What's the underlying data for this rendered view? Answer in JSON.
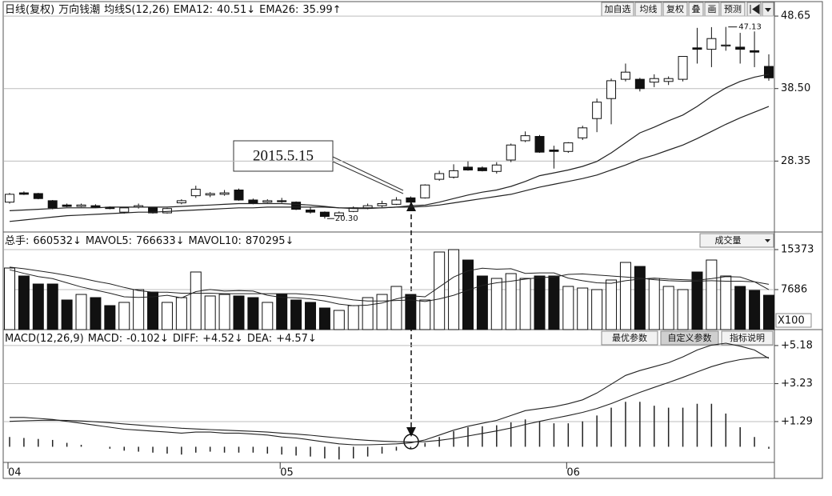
{
  "toolbar": {
    "buttons": [
      "加自选",
      "均线",
      "复权",
      "叠",
      "画",
      "预测"
    ]
  },
  "chart_data": [
    {
      "type": "candlestick",
      "title": "日线(复权)",
      "subtitle": "万向钱潮",
      "indicator": "均线S(12,26)",
      "open": [
        22.6,
        23.9,
        23.8,
        22.8,
        22.2,
        22.0,
        22.1,
        21.9,
        21.2,
        21.9,
        21.8,
        21.1,
        22.5,
        23.5,
        23.6,
        23.7,
        24.3,
        22.9,
        22.6,
        22.8,
        22.6,
        21.5,
        21.2,
        20.7,
        21.3,
        21.8,
        22.1,
        22.3,
        23.2,
        23.2,
        25.8,
        26.1,
        27.5,
        27.4,
        26.9,
        28.5,
        31.2,
        31.8,
        29.9,
        29.7,
        31.6,
        34.3,
        37.1,
        39.8,
        39.8,
        39.4,
        39.5,
        39.8,
        44.2,
        44.0,
        44.5,
        44.3,
        43.8,
        41.6
      ],
      "high": [
        23.9,
        24.1,
        23.9,
        22.9,
        22.4,
        22.4,
        22.3,
        22.0,
        21.9,
        22.4,
        21.9,
        21.8,
        23.0,
        24.9,
        24.0,
        24.3,
        24.5,
        23.1,
        23.0,
        23.2,
        22.7,
        21.9,
        21.3,
        21.3,
        22.0,
        22.4,
        22.8,
        23.3,
        23.4,
        25.1,
        27.0,
        27.9,
        28.3,
        27.6,
        28.2,
        30.8,
        32.5,
        32.0,
        30.5,
        31.0,
        33.3,
        37.1,
        39.9,
        42.0,
        40.0,
        40.5,
        40.2,
        43.0,
        47.0,
        47.1,
        47.13,
        46.3,
        46.5,
        43.3
      ],
      "low": [
        22.4,
        23.6,
        23.0,
        21.6,
        21.9,
        21.9,
        21.8,
        21.6,
        21.0,
        21.7,
        21.0,
        21.0,
        22.3,
        23.2,
        23.3,
        23.5,
        22.8,
        22.3,
        22.5,
        22.5,
        21.5,
        21.0,
        20.3,
        20.6,
        21.2,
        21.6,
        21.9,
        22.2,
        22.3,
        23.1,
        25.6,
        25.9,
        27.0,
        26.9,
        26.6,
        28.2,
        31.0,
        29.5,
        27.3,
        29.5,
        31.3,
        32.4,
        33.5,
        39.5,
        38.1,
        38.7,
        39.0,
        39.5,
        42.0,
        41.5,
        43.8,
        42.0,
        41.5,
        39.6
      ],
      "close": [
        23.7,
        23.7,
        23.1,
        21.8,
        22.0,
        22.2,
        21.9,
        21.7,
        21.8,
        22.1,
        21.1,
        21.7,
        22.8,
        24.4,
        23.8,
        23.9,
        22.9,
        22.4,
        22.8,
        22.7,
        21.6,
        21.2,
        20.6,
        21.1,
        21.8,
        22.1,
        22.4,
        22.9,
        22.6,
        25.0,
        26.6,
        27.0,
        27.1,
        27.0,
        27.8,
        30.6,
        31.9,
        29.6,
        29.7,
        30.9,
        33.0,
        36.6,
        39.6,
        40.8,
        38.5,
        39.9,
        39.9,
        43.0,
        44.0,
        45.5,
        44.6,
        44.0,
        43.6,
        40.0
      ],
      "series": [
        {
          "name": "EMA12:",
          "legend_value": "40.51↓",
          "color": "#222222",
          "values": [
            21.4,
            21.5,
            21.6,
            21.7,
            21.8,
            21.8,
            21.8,
            21.9,
            21.9,
            21.9,
            21.9,
            21.9,
            22.0,
            22.1,
            22.2,
            22.3,
            22.4,
            22.4,
            22.4,
            22.4,
            22.3,
            22.2,
            22.0,
            21.8,
            21.7,
            21.7,
            21.8,
            21.9,
            22.1,
            22.2,
            22.6,
            23.1,
            23.6,
            24.0,
            24.3,
            24.8,
            25.5,
            26.3,
            26.7,
            27.1,
            27.6,
            28.3,
            29.5,
            30.9,
            32.3,
            33.1,
            34.0,
            34.8,
            36.0,
            37.4,
            38.6,
            39.5,
            40.1,
            40.51
          ]
        },
        {
          "name": "EMA26:",
          "legend_value": "35.99↑",
          "color": "#222222",
          "values": [
            19.9,
            20.1,
            20.3,
            20.5,
            20.7,
            20.8,
            20.9,
            21.0,
            21.1,
            21.2,
            21.2,
            21.3,
            21.4,
            21.5,
            21.6,
            21.7,
            21.8,
            21.8,
            21.9,
            21.9,
            21.9,
            21.9,
            21.9,
            21.8,
            21.8,
            21.8,
            21.8,
            21.9,
            21.9,
            22.0,
            22.2,
            22.5,
            22.8,
            23.1,
            23.4,
            23.7,
            24.2,
            24.7,
            25.1,
            25.5,
            25.9,
            26.4,
            27.1,
            27.8,
            28.6,
            29.2,
            29.9,
            30.6,
            31.5,
            32.5,
            33.5,
            34.4,
            35.2,
            35.99
          ]
        }
      ],
      "max_label": "47.13",
      "min_label": "20.30",
      "annotation": "2015.5.15",
      "ylim": [
        18.42,
        50.34
      ],
      "yticks": [
        48.65,
        {
          "value": 38.5,
          "label": "38.50"
        },
        28.35
      ],
      "grid": true
    },
    {
      "type": "bar",
      "name": "总手:",
      "legend_value": "660532↓",
      "dropdown": "成交量",
      "unit_label": "X100",
      "values": [
        11835,
        10300,
        8760,
        8760,
        5690,
        6760,
        6150,
        4610,
        5230,
        7690,
        7220,
        5230,
        6150,
        11070,
        6460,
        6760,
        6460,
        6150,
        5230,
        6760,
        5690,
        5230,
        4150,
        3690,
        4610,
        6150,
        6760,
        8300,
        6760,
        5690,
        14910,
        15370,
        13370,
        10300,
        9840,
        10760,
        9840,
        10300,
        10300,
        8300,
        7990,
        7690,
        9530,
        12910,
        12140,
        9840,
        8300,
        7690,
        11070,
        13370,
        10300,
        8300,
        7530,
        6605.32
      ],
      "series": [
        {
          "name": "MAVOL5:",
          "legend_value": "766633↓",
          "color": "#222222",
          "values": [
            11500,
            10800,
            10200,
            9800,
            9000,
            8200,
            7600,
            7000,
            6300,
            6200,
            6300,
            6600,
            6100,
            7300,
            7700,
            7400,
            7500,
            7400,
            6600,
            6200,
            6100,
            5900,
            5500,
            4900,
            4600,
            4700,
            5100,
            5900,
            6500,
            6300,
            8200,
            10100,
            11300,
            11800,
            11600,
            11700,
            10800,
            10900,
            10900,
            9900,
            9400,
            9000,
            8900,
            9400,
            9700,
            9900,
            9700,
            9600,
            9500,
            9800,
            10200,
            10100,
            9200,
            7666.33
          ]
        },
        {
          "name": "MAVOL10:",
          "legend_value": "870295↓",
          "color": "#222222",
          "values": [
            12000,
            11700,
            11300,
            10900,
            10400,
            9900,
            9300,
            8800,
            8100,
            7500,
            7200,
            7200,
            7000,
            7000,
            7000,
            6900,
            6900,
            6900,
            6900,
            6900,
            6900,
            6700,
            6500,
            6100,
            5700,
            5500,
            5500,
            5600,
            5700,
            5400,
            5900,
            6600,
            7600,
            8500,
            9000,
            9300,
            9700,
            10000,
            10100,
            10600,
            10700,
            10500,
            10300,
            10100,
            9900,
            9600,
            9400,
            9300,
            9300,
            9400,
            9300,
            9300,
            9200,
            8702.95
          ]
        }
      ],
      "ylim": [
        0,
        18294
      ],
      "yticks": [
        15373,
        7686
      ],
      "grid": true
    },
    {
      "type": "macd",
      "title": "MACD(12,26,9)",
      "buttons": [
        "最优参数",
        "自定义参数",
        "指标说明"
      ],
      "categories": [
        "04",
        null,
        null,
        null,
        null,
        null,
        null,
        null,
        null,
        null,
        null,
        null,
        null,
        null,
        null,
        null,
        null,
        null,
        null,
        "05",
        null,
        null,
        null,
        null,
        null,
        null,
        null,
        null,
        null,
        null,
        null,
        null,
        null,
        null,
        null,
        null,
        null,
        null,
        null,
        "06",
        null,
        null,
        null,
        null,
        null,
        null,
        null,
        null,
        null,
        null,
        null,
        null,
        null,
        null
      ],
      "series": [
        {
          "name": "MACD:",
          "legend_value": "-0.102↓",
          "kind": "bar",
          "color": "#222222",
          "values": [
            0.5,
            0.45,
            0.4,
            0.35,
            0.2,
            0.1,
            0.0,
            -0.1,
            -0.2,
            -0.25,
            -0.3,
            -0.35,
            -0.4,
            -0.3,
            -0.25,
            -0.3,
            -0.3,
            -0.3,
            -0.35,
            -0.4,
            -0.45,
            -0.5,
            -0.6,
            -0.65,
            -0.6,
            -0.5,
            -0.35,
            -0.2,
            -0.1,
            0.2,
            0.5,
            0.8,
            1.0,
            1.05,
            1.1,
            1.25,
            1.4,
            1.3,
            1.2,
            1.2,
            1.3,
            1.6,
            2.0,
            2.3,
            2.3,
            2.1,
            2.0,
            2.0,
            2.2,
            2.2,
            1.7,
            1.0,
            0.5,
            -0.102
          ]
        },
        {
          "name": "DIFF:",
          "legend_value": "+4.52↓",
          "kind": "line",
          "color": "#222222",
          "values": [
            1.5,
            1.5,
            1.45,
            1.4,
            1.3,
            1.2,
            1.1,
            1.0,
            0.9,
            0.85,
            0.8,
            0.75,
            0.7,
            0.75,
            0.75,
            0.7,
            0.7,
            0.65,
            0.6,
            0.5,
            0.45,
            0.35,
            0.25,
            0.15,
            0.1,
            0.1,
            0.12,
            0.15,
            0.2,
            0.35,
            0.6,
            0.85,
            1.05,
            1.2,
            1.35,
            1.6,
            1.85,
            1.95,
            2.05,
            2.2,
            2.4,
            2.75,
            3.2,
            3.65,
            3.9,
            4.1,
            4.3,
            4.6,
            4.95,
            5.2,
            5.3,
            5.15,
            4.95,
            4.52
          ]
        },
        {
          "name": "DEA:",
          "legend_value": "+4.57↓",
          "kind": "line",
          "color": "#222222",
          "values": [
            1.3,
            1.33,
            1.35,
            1.36,
            1.35,
            1.32,
            1.28,
            1.23,
            1.17,
            1.11,
            1.05,
            1.0,
            0.95,
            0.91,
            0.88,
            0.85,
            0.82,
            0.79,
            0.75,
            0.7,
            0.65,
            0.59,
            0.52,
            0.45,
            0.38,
            0.33,
            0.29,
            0.26,
            0.25,
            0.26,
            0.33,
            0.43,
            0.55,
            0.68,
            0.81,
            0.96,
            1.14,
            1.3,
            1.45,
            1.6,
            1.76,
            1.96,
            2.21,
            2.5,
            2.78,
            3.04,
            3.29,
            3.55,
            3.83,
            4.1,
            4.31,
            4.46,
            4.55,
            4.57
          ]
        }
      ],
      "ylim": [
        -0.8,
        5.75
      ],
      "yticks": [
        {
          "value": 5.18,
          "label": "+5.18"
        },
        {
          "value": 3.23,
          "label": "+3.23"
        },
        {
          "value": 1.29,
          "label": "+1.29"
        }
      ],
      "grid": true
    }
  ]
}
